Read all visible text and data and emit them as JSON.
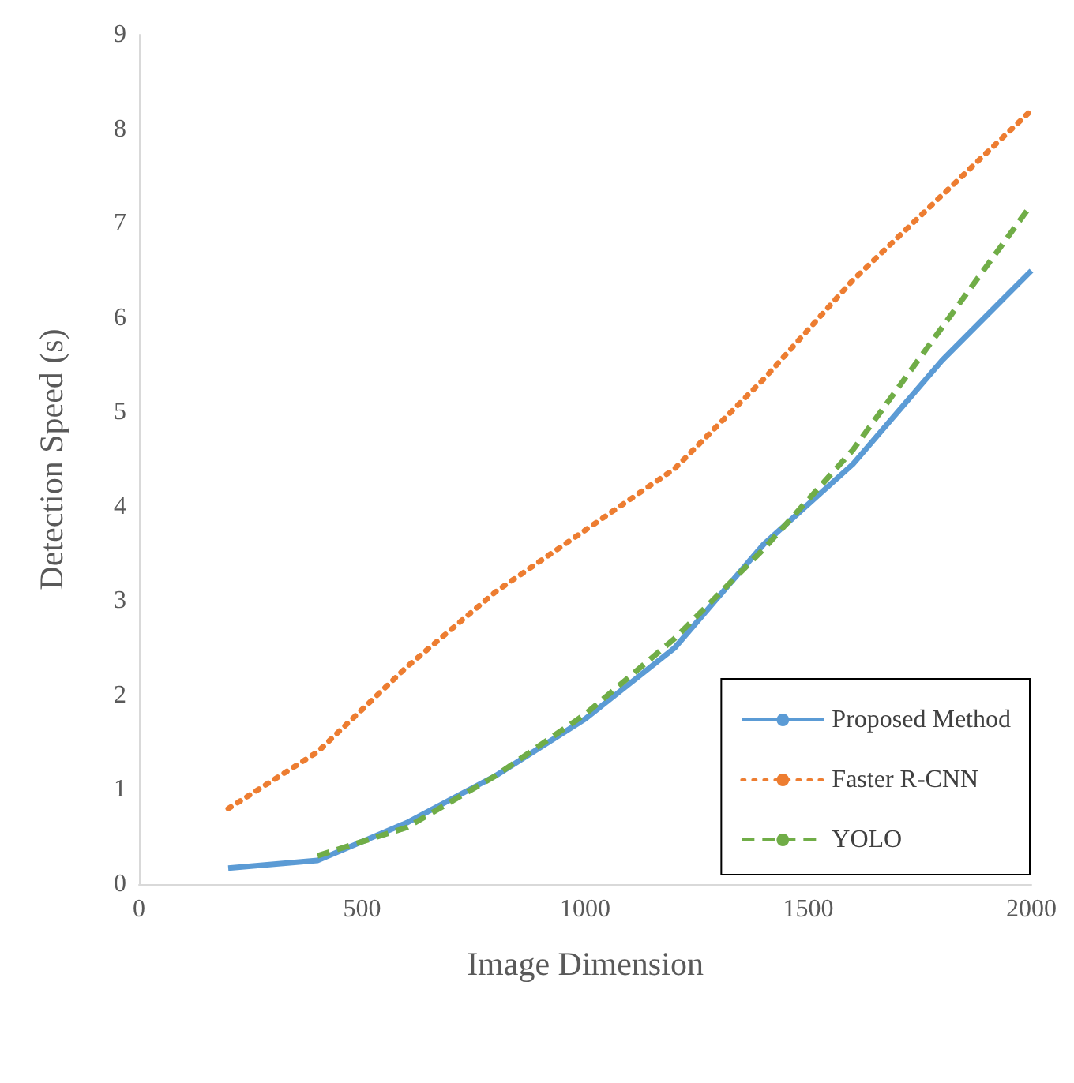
{
  "chart_data": {
    "type": "line",
    "xlabel": "Image Dimension",
    "ylabel": "Detection Speed (s)",
    "x": [
      200,
      400,
      600,
      800,
      1000,
      1200,
      1400,
      1600,
      1800,
      2000
    ],
    "series": [
      {
        "name": "Proposed Method",
        "color": "#5b9bd5",
        "line_style": "solid",
        "values": [
          0.17,
          0.25,
          0.65,
          1.15,
          1.75,
          2.5,
          3.6,
          4.45,
          5.55,
          6.5
        ]
      },
      {
        "name": "Faster R-CNN",
        "color": "#ed7d31",
        "line_style": "dotted",
        "values": [
          0.8,
          1.4,
          2.3,
          3.1,
          3.75,
          4.4,
          5.35,
          6.4,
          7.3,
          8.2
        ]
      },
      {
        "name": "YOLO",
        "color": "#70ad47",
        "line_style": "dashed",
        "values": [
          null,
          0.3,
          0.6,
          1.15,
          1.8,
          2.6,
          3.55,
          4.6,
          5.9,
          7.2
        ]
      }
    ],
    "xlim": [
      0,
      2000
    ],
    "xticks": [
      0,
      500,
      1000,
      1500,
      2000
    ],
    "ylim": [
      0,
      9
    ],
    "yticks": [
      0,
      1,
      2,
      3,
      4,
      5,
      6,
      7,
      8,
      9
    ],
    "grid": false,
    "legend": "bottom right",
    "marker": "none"
  }
}
